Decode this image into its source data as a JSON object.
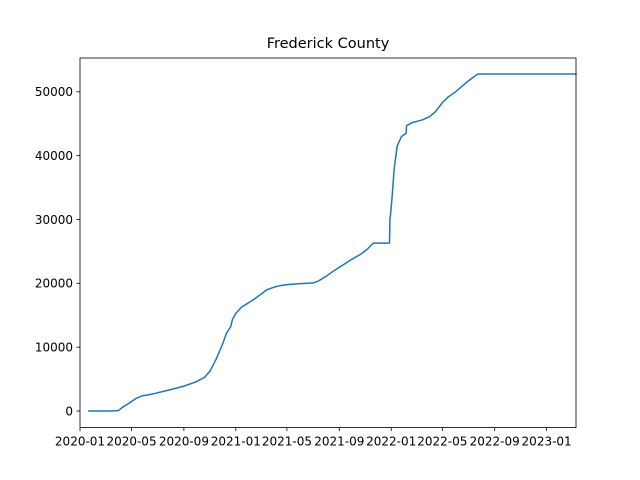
{
  "chart_data": {
    "type": "line",
    "title": "Frederick County",
    "xlabel": "",
    "ylabel": "",
    "grid": false,
    "x_axis": {
      "type": "date",
      "range": [
        "2020-01-01",
        "2023-03-11"
      ],
      "ticks": [
        "2020-01",
        "2020-05",
        "2020-09",
        "2021-01",
        "2021-05",
        "2021-09",
        "2022-01",
        "2022-05",
        "2022-09",
        "2023-01"
      ]
    },
    "y_axis": {
      "range": [
        -2600,
        55300
      ],
      "ticks": [
        0,
        10000,
        20000,
        30000,
        40000,
        50000
      ]
    },
    "series": [
      {
        "color": "#1f77b4",
        "points": [
          [
            "2020-01-22",
            0
          ],
          [
            "2020-03-10",
            0
          ],
          [
            "2020-03-31",
            60
          ],
          [
            "2020-04-10",
            600
          ],
          [
            "2020-04-25",
            1200
          ],
          [
            "2020-05-10",
            1900
          ],
          [
            "2020-05-25",
            2350
          ],
          [
            "2020-06-10",
            2550
          ],
          [
            "2020-06-25",
            2750
          ],
          [
            "2020-07-10",
            3000
          ],
          [
            "2020-08-01",
            3350
          ],
          [
            "2020-09-01",
            3900
          ],
          [
            "2020-10-01",
            4600
          ],
          [
            "2020-10-20",
            5300
          ],
          [
            "2020-11-01",
            6200
          ],
          [
            "2020-11-15",
            8000
          ],
          [
            "2020-12-01",
            10500
          ],
          [
            "2020-12-10",
            12200
          ],
          [
            "2020-12-20",
            13200
          ],
          [
            "2020-12-24",
            14300
          ],
          [
            "2021-01-01",
            15300
          ],
          [
            "2021-01-15",
            16300
          ],
          [
            "2021-02-01",
            17000
          ],
          [
            "2021-02-15",
            17600
          ],
          [
            "2021-03-01",
            18300
          ],
          [
            "2021-03-15",
            19000
          ],
          [
            "2021-04-01",
            19400
          ],
          [
            "2021-04-15",
            19650
          ],
          [
            "2021-05-01",
            19800
          ],
          [
            "2021-06-01",
            19950
          ],
          [
            "2021-07-01",
            20050
          ],
          [
            "2021-07-15",
            20400
          ],
          [
            "2021-08-01",
            21100
          ],
          [
            "2021-08-20",
            22000
          ],
          [
            "2021-09-10",
            22900
          ],
          [
            "2021-10-01",
            23800
          ],
          [
            "2021-10-20",
            24500
          ],
          [
            "2021-11-05",
            25300
          ],
          [
            "2021-11-20",
            26300
          ],
          [
            "2021-12-28",
            26300
          ],
          [
            "2021-12-29",
            30200
          ],
          [
            "2021-12-30",
            30500
          ],
          [
            "2022-01-03",
            33500
          ],
          [
            "2022-01-08",
            38000
          ],
          [
            "2022-01-15",
            41500
          ],
          [
            "2022-01-25",
            43000
          ],
          [
            "2022-02-05",
            43500
          ],
          [
            "2022-02-06",
            44700
          ],
          [
            "2022-02-20",
            45200
          ],
          [
            "2022-03-15",
            45600
          ],
          [
            "2022-04-01",
            46100
          ],
          [
            "2022-04-15",
            46900
          ],
          [
            "2022-05-01",
            48300
          ],
          [
            "2022-05-15",
            49200
          ],
          [
            "2022-06-01",
            50000
          ],
          [
            "2022-06-15",
            50800
          ],
          [
            "2022-07-01",
            51700
          ],
          [
            "2022-07-15",
            52400
          ],
          [
            "2022-07-24",
            52800
          ],
          [
            "2023-03-11",
            52800
          ]
        ]
      }
    ]
  }
}
